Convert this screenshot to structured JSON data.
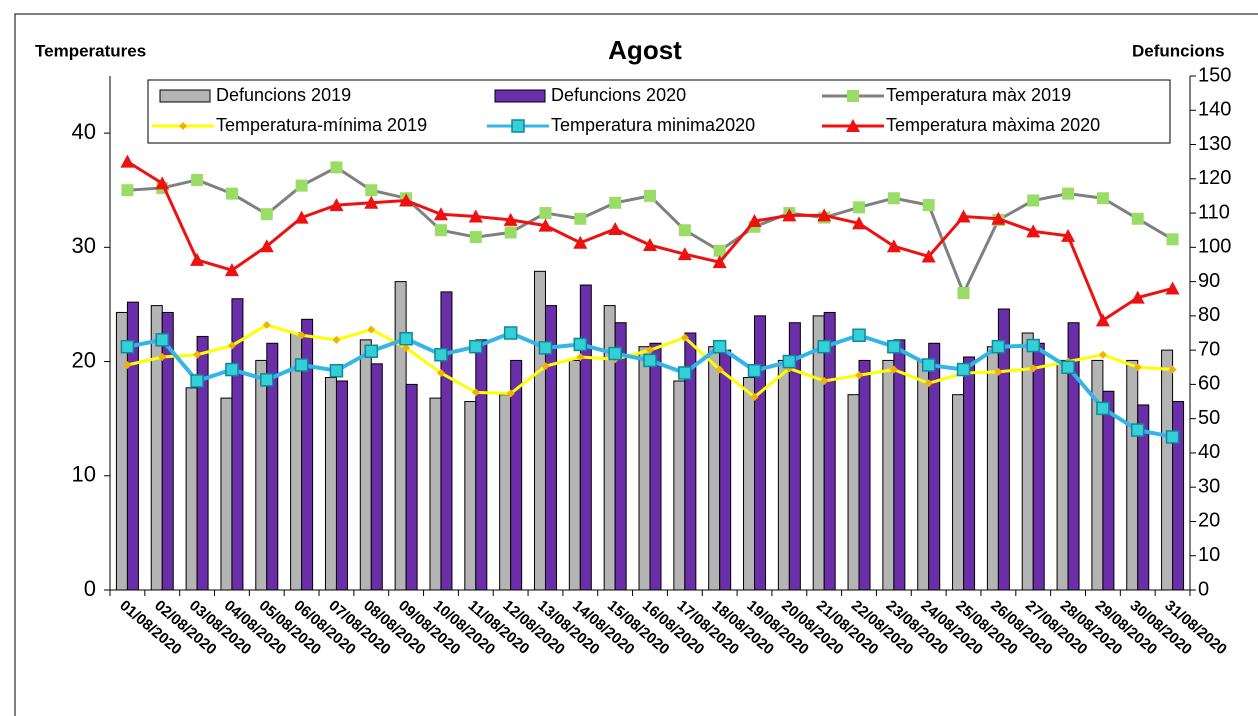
{
  "chart_data": {
    "type": "bar",
    "title": "Agost",
    "y_label": "Temperatures",
    "y2_label": "Defuncions",
    "categories": [
      "01/08/2020",
      "02/08/2020",
      "03/08/2020",
      "04/08/2020",
      "05/08/2020",
      "06/08/2020",
      "07/08/2020",
      "08/08/2020",
      "09/08/2020",
      "10/08/2020",
      "11/08/2020",
      "12/08/2020",
      "13/08/2020",
      "14/08/2020",
      "15/08/2020",
      "16/08/2020",
      "17/08/2020",
      "18/08/2020",
      "19/08/2020",
      "20/08/2020",
      "21/08/2020",
      "22/08/2020",
      "23/08/2020",
      "24/08/2020",
      "25/08/2020",
      "26/08/2020",
      "27/08/2020",
      "28/08/2020",
      "29/08/2020",
      "30/08/2020",
      "31/08/2020"
    ],
    "ylim": [
      0,
      45
    ],
    "yticks": [
      0,
      10,
      20,
      30,
      40
    ],
    "y2lim": [
      0,
      150
    ],
    "y2ticks": [
      0,
      10,
      20,
      30,
      40,
      50,
      60,
      70,
      80,
      90,
      100,
      110,
      120,
      130,
      140,
      150
    ],
    "series": [
      {
        "name": "Defuncions 2019",
        "type": "bar",
        "axis": "y2",
        "color": "#b4b4b4",
        "values": [
          81,
          83,
          59,
          56,
          67,
          75,
          62,
          73,
          90,
          56,
          55,
          57,
          93,
          67,
          83,
          71,
          61,
          71,
          62,
          67,
          80,
          57,
          67,
          67,
          57,
          71,
          75,
          67,
          67,
          67,
          70
        ]
      },
      {
        "name": "Defuncions 2020",
        "type": "bar",
        "axis": "y2",
        "color": "#6a2fa8",
        "values": [
          84,
          81,
          74,
          85,
          72,
          79,
          61,
          66,
          60,
          87,
          73,
          67,
          83,
          89,
          78,
          72,
          75,
          70,
          80,
          78,
          81,
          67,
          73,
          72,
          68,
          82,
          72,
          78,
          58,
          54,
          55
        ]
      },
      {
        "name": "Temperatura màx 2019",
        "type": "line",
        "marker": "square",
        "color": "#808080",
        "marker_color": "#99dd66",
        "values": [
          35.0,
          35.2,
          35.9,
          34.7,
          32.9,
          35.4,
          37.0,
          35.0,
          34.3,
          31.5,
          30.9,
          31.3,
          33.0,
          32.5,
          33.9,
          34.5,
          31.5,
          29.7,
          31.8,
          33.0,
          32.6,
          33.5,
          34.3,
          33.7,
          26.0,
          32.4,
          34.1,
          34.7,
          34.3,
          32.5,
          30.7
        ]
      },
      {
        "name": "Temperatura-mínima 2019",
        "type": "line",
        "marker": "diamond",
        "color": "#ffff00",
        "marker_color": "#f0b400",
        "values": [
          19.7,
          20.4,
          20.6,
          21.4,
          23.2,
          22.3,
          21.9,
          22.8,
          21.2,
          19.0,
          17.3,
          17.2,
          19.6,
          20.4,
          20.2,
          21.0,
          22.1,
          19.3,
          16.9,
          19.4,
          18.3,
          18.8,
          19.3,
          18.1,
          19.0,
          19.1,
          19.4,
          20.0,
          20.6,
          19.5,
          19.3
        ]
      },
      {
        "name": "Temperatura minima2020",
        "type": "line",
        "marker": "square",
        "color": "#33b5e8",
        "marker_color": "#33d0d8",
        "values": [
          21.3,
          21.9,
          18.3,
          19.3,
          18.4,
          19.7,
          19.2,
          20.9,
          22.0,
          20.6,
          21.3,
          22.5,
          21.2,
          21.5,
          20.7,
          20.1,
          19.0,
          21.3,
          19.2,
          20.0,
          21.3,
          22.3,
          21.3,
          19.7,
          19.3,
          21.3,
          21.4,
          19.5,
          15.9,
          14.0,
          13.4
        ]
      },
      {
        "name": "Temperatura màxima 2020",
        "type": "line",
        "marker": "triangle",
        "color": "#ee1111",
        "marker_color": "#ee1111",
        "values": [
          37.5,
          35.6,
          28.9,
          28.0,
          30.1,
          32.6,
          33.7,
          33.9,
          34.1,
          32.9,
          32.7,
          32.4,
          31.9,
          30.4,
          31.6,
          30.2,
          29.4,
          28.7,
          32.3,
          32.8,
          32.8,
          32.1,
          30.1,
          29.2,
          32.7,
          32.5,
          31.4,
          31.0,
          23.6,
          25.6,
          26.4
        ]
      }
    ]
  }
}
